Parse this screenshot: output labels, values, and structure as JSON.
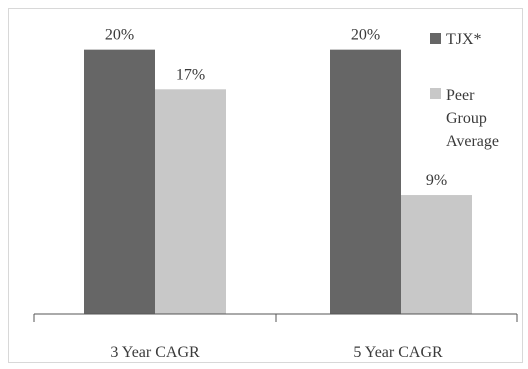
{
  "chart_data": {
    "type": "bar",
    "categories": [
      "3 Year CAGR",
      "5 Year CAGR"
    ],
    "series": [
      {
        "name": "TJX*",
        "values": [
          20,
          20
        ],
        "labels": [
          "20%",
          "20%"
        ],
        "color": "#666666"
      },
      {
        "name": "Peer Group Average",
        "values": [
          17,
          9
        ],
        "labels": [
          "17%",
          "9%"
        ],
        "color": "#c8c8c8"
      }
    ],
    "legend": [
      "TJX*",
      "Peer Group Average"
    ],
    "legend_placement": "top-right",
    "ylim": [
      0,
      23
    ],
    "grid": false
  }
}
